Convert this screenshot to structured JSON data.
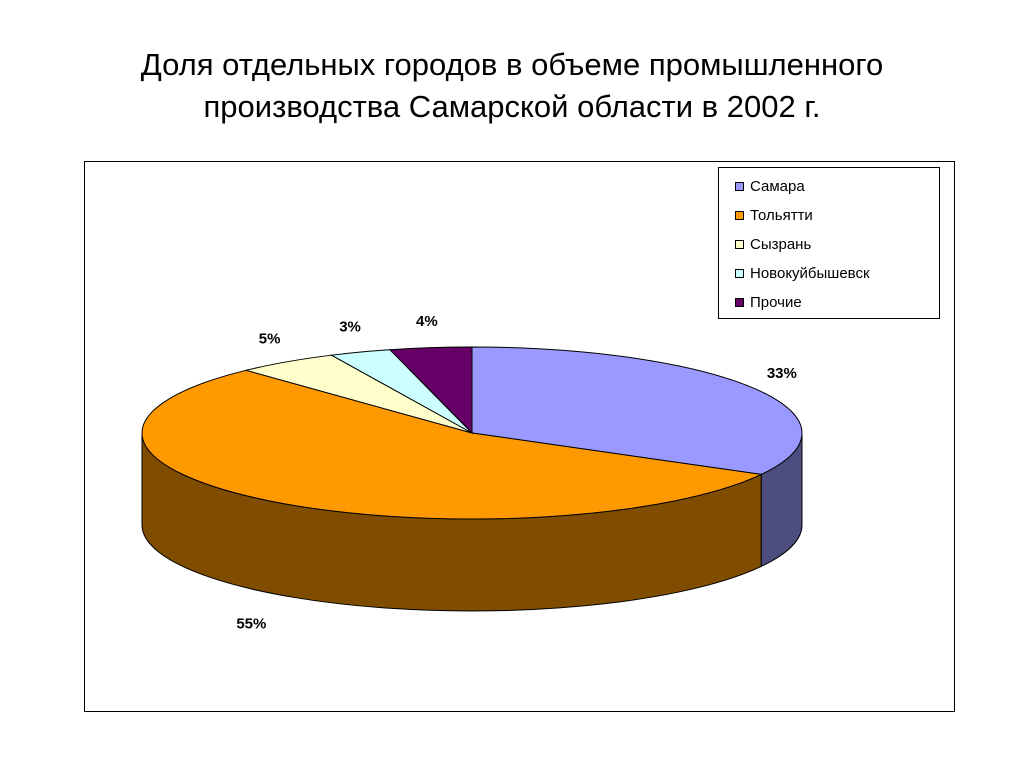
{
  "slide": {
    "title_line1": "Доля отдельных городов в объеме промышленного",
    "title_line2": "производства Самарской области в 2002 г."
  },
  "chart_data": {
    "type": "pie",
    "title": "Доля отдельных городов в объеме промышленного производства Самарской области в 2002 г.",
    "three_d": true,
    "legend_position": "top-right",
    "slices": [
      {
        "label": "Самара",
        "value": 33,
        "display": "33%",
        "color": "#9999ff",
        "side_color": "#4d4d80"
      },
      {
        "label": "Тольятти",
        "value": 55,
        "display": "55%",
        "color": "#ff9900",
        "side_color": "#804c00"
      },
      {
        "label": "Сызрань",
        "value": 5,
        "display": "5%",
        "color": "#ffffcc",
        "side_color": "#808066"
      },
      {
        "label": "Новокуйбышевск",
        "value": 3,
        "display": "3%",
        "color": "#ccffff",
        "side_color": "#668080"
      },
      {
        "label": "Прочие",
        "value": 4,
        "display": "4%",
        "color": "#660066",
        "side_color": "#330033"
      }
    ]
  }
}
